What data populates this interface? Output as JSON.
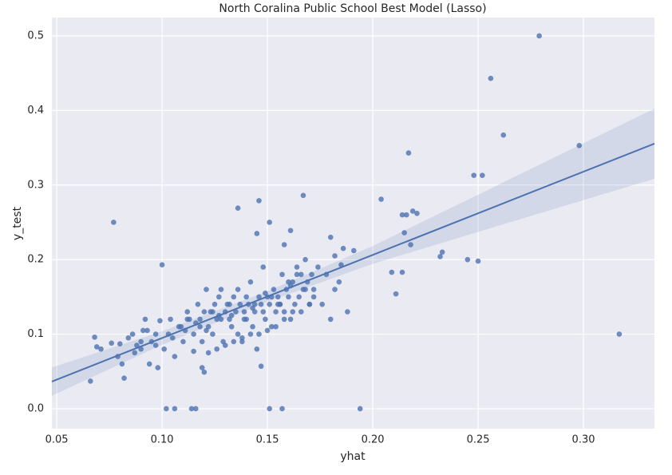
{
  "chart_data": {
    "type": "scatter",
    "title": "North Coralina Public School Best Model (Lasso)",
    "x_label": "yhat",
    "y_label": "y_test",
    "xlim": [
      0.0477,
      0.3337
    ],
    "ylim": [
      -0.0268,
      0.5246
    ],
    "xticks": [
      0.05,
      {
        "value": 0.1,
        "label": "0.10"
      },
      0.15,
      {
        "value": 0.2,
        "label": "0.20"
      },
      0.25,
      {
        "value": 0.3,
        "label": "0.30"
      }
    ],
    "yticks": [
      {
        "value": 0,
        "label": "0.0"
      },
      0.1,
      0.2,
      0.3,
      0.4,
      0.5
    ],
    "grid": true,
    "color": "#4c72b0",
    "x": [
      0.279,
      0.256,
      0.262,
      0.298,
      0.217,
      0.317,
      0.248,
      0.252,
      0.077,
      0.146,
      0.167,
      0.136,
      0.145,
      0.151,
      0.204,
      0.214,
      0.216,
      0.219,
      0.221,
      0.215,
      0.218,
      0.233,
      0.232,
      0.245,
      0.25,
      0.209,
      0.214,
      0.211,
      0.1,
      0.194,
      0.151,
      0.157,
      0.102,
      0.106,
      0.114,
      0.116,
      0.066,
      0.082,
      0.068,
      0.069,
      0.071,
      0.161,
      0.18,
      0.158,
      0.188,
      0.191,
      0.186,
      0.182,
      0.185,
      0.147,
      0.12,
      0.119,
      0.098,
      0.094,
      0.09,
      0.079,
      0.081,
      0.076,
      0.08,
      0.084,
      0.086,
      0.088,
      0.09,
      0.092,
      0.093,
      0.095,
      0.097,
      0.099,
      0.101,
      0.103,
      0.104,
      0.106,
      0.108,
      0.11,
      0.111,
      0.112,
      0.113,
      0.115,
      0.116,
      0.117,
      0.118,
      0.119,
      0.12,
      0.121,
      0.122,
      0.123,
      0.124,
      0.125,
      0.126,
      0.127,
      0.128,
      0.129,
      0.13,
      0.131,
      0.132,
      0.133,
      0.134,
      0.135,
      0.136,
      0.137,
      0.138,
      0.139,
      0.14,
      0.141,
      0.142,
      0.143,
      0.144,
      0.145,
      0.146,
      0.147,
      0.148,
      0.149,
      0.15,
      0.151,
      0.152,
      0.153,
      0.154,
      0.155,
      0.156,
      0.157,
      0.158,
      0.159,
      0.16,
      0.161,
      0.162,
      0.163,
      0.164,
      0.165,
      0.166,
      0.167,
      0.168,
      0.169,
      0.17,
      0.171,
      0.172,
      0.174,
      0.176,
      0.178,
      0.18,
      0.182,
      0.184,
      0.112,
      0.118,
      0.124,
      0.128,
      0.132,
      0.136,
      0.14,
      0.144,
      0.148,
      0.152,
      0.156,
      0.16,
      0.164,
      0.168,
      0.172,
      0.105,
      0.109,
      0.115,
      0.121,
      0.127,
      0.133,
      0.139,
      0.143,
      0.149,
      0.155,
      0.161,
      0.097,
      0.091,
      0.087,
      0.122,
      0.126,
      0.13,
      0.134,
      0.138,
      0.142,
      0.146,
      0.15,
      0.154,
      0.158,
      0.162,
      0.166,
      0.17
    ],
    "values": [
      0.5,
      0.443,
      0.367,
      0.353,
      0.343,
      0.1,
      0.313,
      0.313,
      0.25,
      0.279,
      0.286,
      0.269,
      0.235,
      0.25,
      0.281,
      0.26,
      0.26,
      0.265,
      0.262,
      0.236,
      0.22,
      0.21,
      0.204,
      0.2,
      0.198,
      0.183,
      0.183,
      0.154,
      0.193,
      0,
      0,
      0,
      0,
      0,
      0,
      0,
      0.037,
      0.041,
      0.096,
      0.083,
      0.08,
      0.239,
      0.23,
      0.22,
      0.13,
      0.212,
      0.215,
      0.205,
      0.193,
      0.057,
      0.049,
      0.055,
      0.055,
      0.06,
      0.08,
      0.07,
      0.06,
      0.088,
      0.087,
      0.095,
      0.1,
      0.085,
      0.09,
      0.12,
      0.105,
      0.09,
      0.1,
      0.118,
      0.08,
      0.1,
      0.12,
      0.07,
      0.11,
      0.09,
      0.105,
      0.13,
      0.12,
      0.077,
      0.115,
      0.14,
      0.12,
      0.09,
      0.13,
      0.16,
      0.11,
      0.13,
      0.1,
      0.14,
      0.12,
      0.15,
      0.16,
      0.09,
      0.13,
      0.14,
      0.12,
      0.11,
      0.15,
      0.13,
      0.16,
      0.14,
      0.09,
      0.12,
      0.15,
      0.14,
      0.17,
      0.11,
      0.13,
      0.08,
      0.15,
      0.14,
      0.19,
      0.12,
      0.15,
      0.14,
      0.11,
      0.16,
      0.13,
      0.15,
      0.14,
      0.18,
      0.13,
      0.16,
      0.15,
      0.12,
      0.17,
      0.14,
      0.19,
      0.15,
      0.18,
      0.16,
      0.2,
      0.17,
      0.14,
      0.18,
      0.16,
      0.19,
      0.14,
      0.18,
      0.12,
      0.16,
      0.17,
      0.12,
      0.11,
      0.13,
      0.12,
      0.14,
      0.1,
      0.12,
      0.14,
      0.13,
      0.15,
      0.14,
      0.17,
      0.18,
      0.16,
      0.15,
      0.095,
      0.11,
      0.1,
      0.105,
      0.125,
      0.125,
      0.13,
      0.135,
      0.155,
      0.14,
      0.165,
      0.085,
      0.105,
      0.075,
      0.075,
      0.08,
      0.085,
      0.09,
      0.095,
      0.1,
      0.1,
      0.105,
      0.11,
      0.12,
      0.13,
      0.13,
      0.14
    ],
    "regression": {
      "color": "#4c72b0",
      "x": [
        0.0477,
        0.1,
        0.15,
        0.2,
        0.25,
        0.3337
      ],
      "values": [
        0.0364,
        0.0948,
        0.1505,
        0.2063,
        0.2621,
        0.3555
      ],
      "ci_low": [
        0.0174,
        0.0858,
        0.1435,
        0.1943,
        0.2371,
        0.3085
      ],
      "ci_high": [
        0.0554,
        0.1038,
        0.1575,
        0.2183,
        0.2871,
        0.4025
      ]
    }
  }
}
